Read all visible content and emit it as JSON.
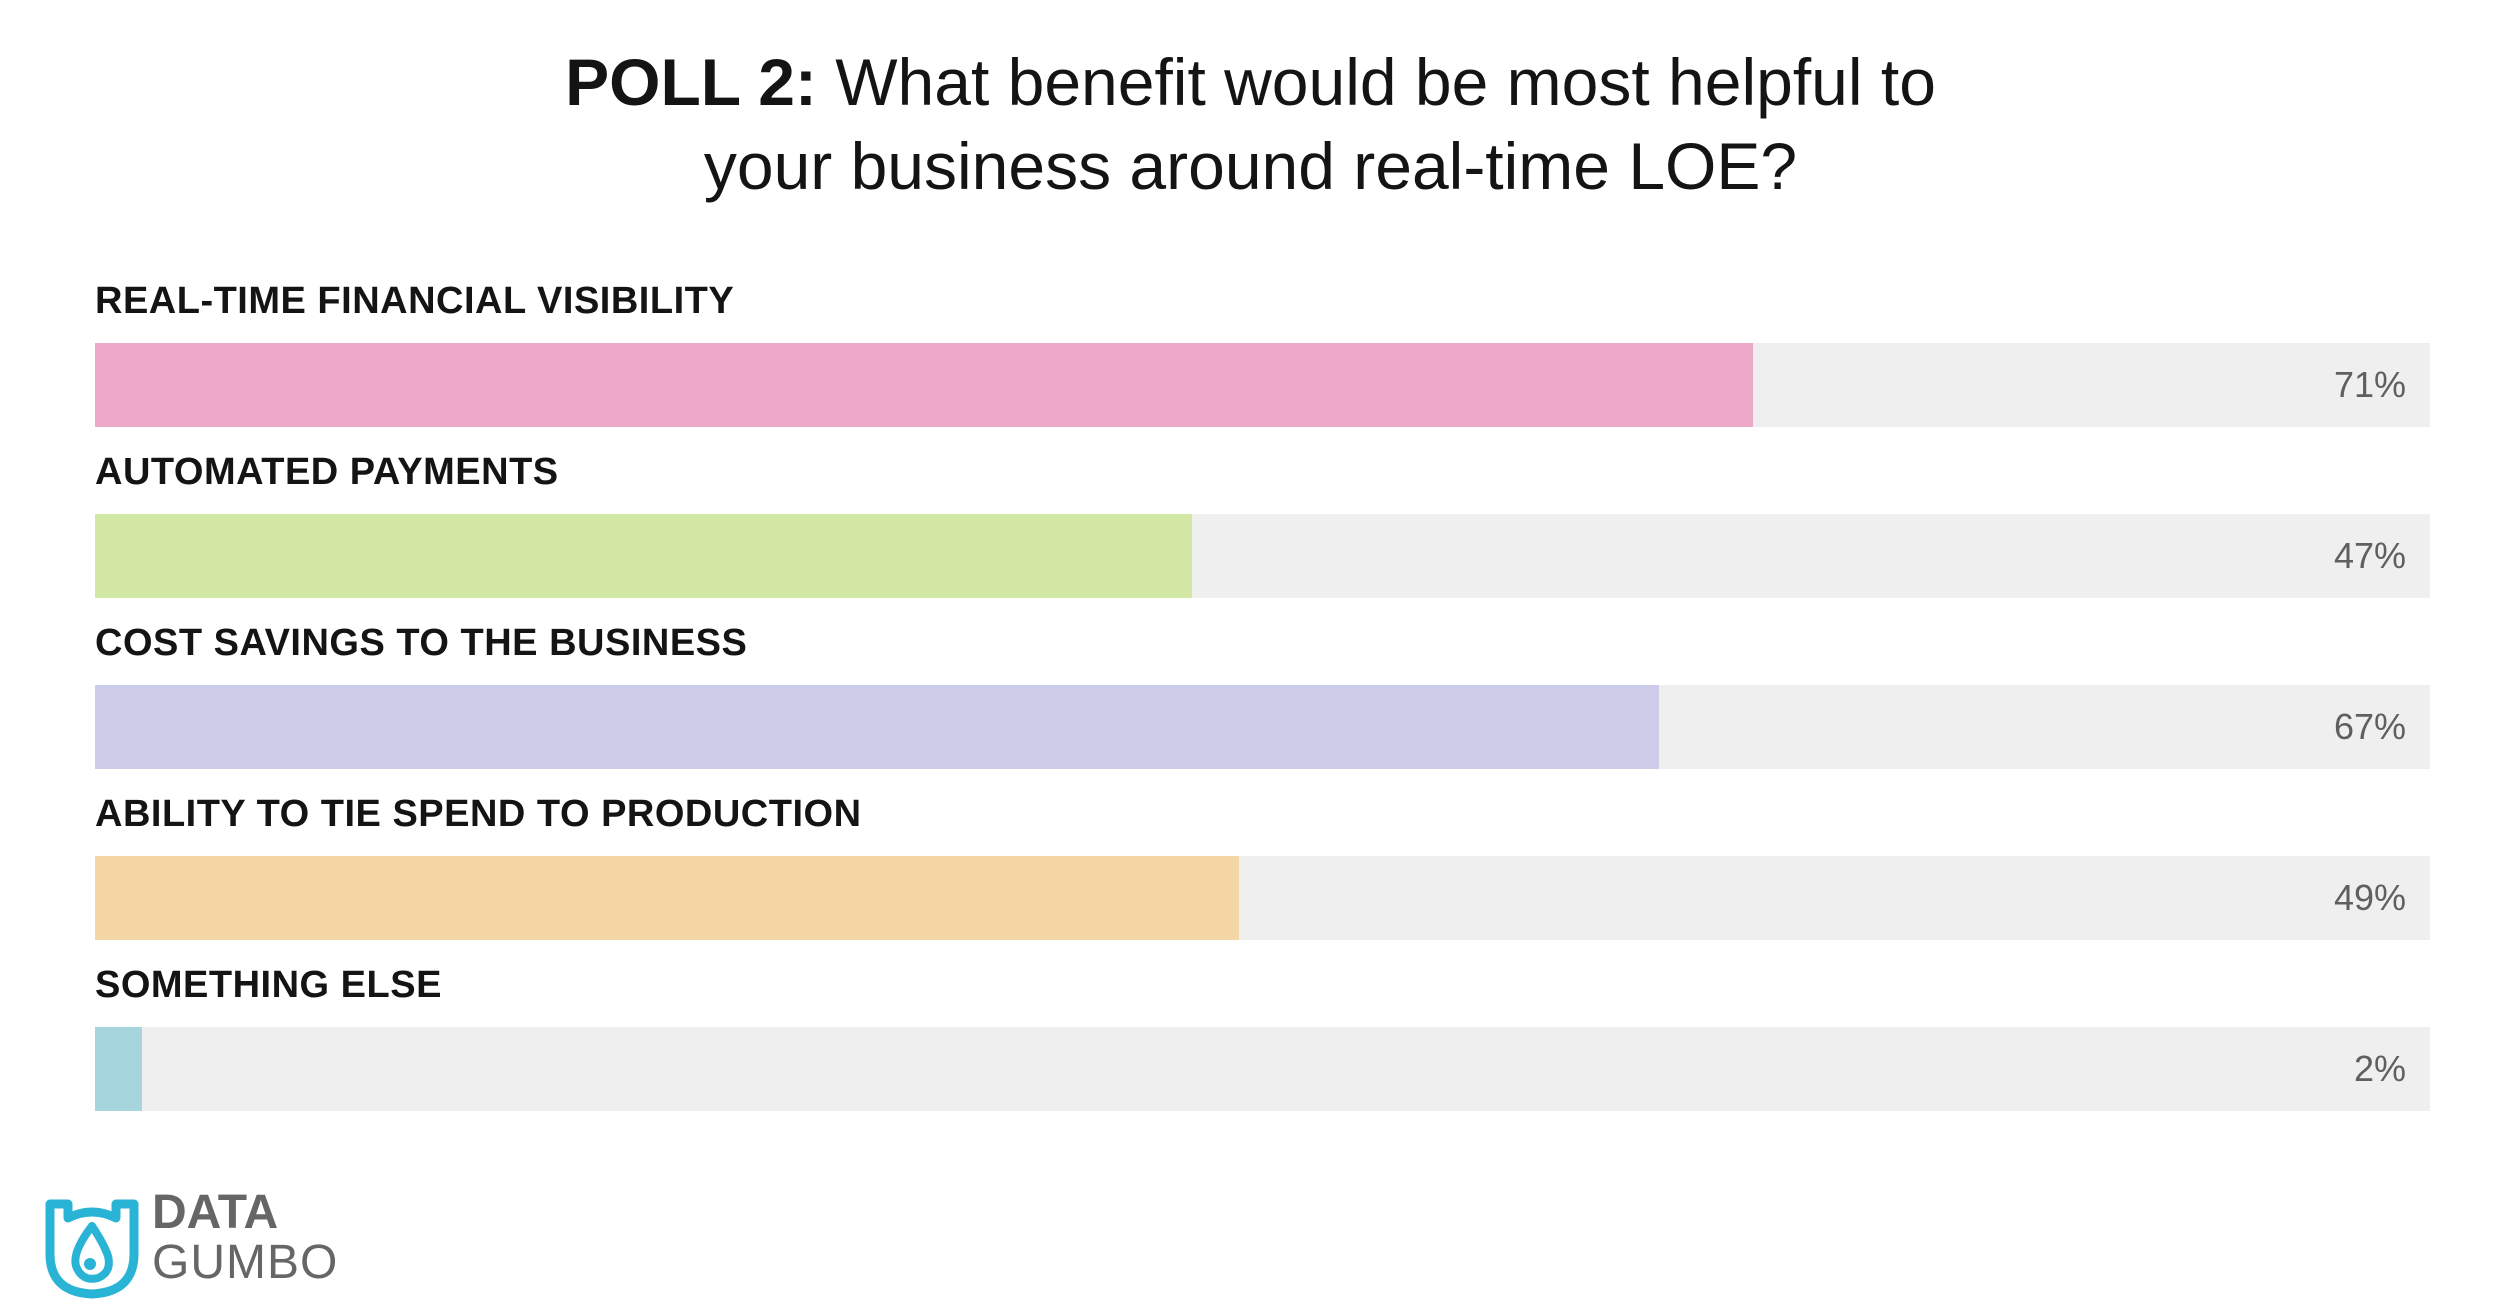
{
  "title": {
    "bold": "POLL 2:",
    "rest_line1": "What benefit would be most helpful to",
    "line2": "your business around real-time LOE?"
  },
  "chart_data": {
    "type": "bar",
    "orientation": "horizontal",
    "title": "POLL 2: What benefit would be most helpful to your business around real-time LOE?",
    "categories": [
      "REAL-TIME FINANCIAL VISIBILITY",
      "AUTOMATED PAYMENTS",
      "COST SAVINGS TO THE BUSINESS",
      "ABILITY TO TIE SPEND TO PRODUCTION",
      "SOMETHING ELSE"
    ],
    "values": [
      71,
      47,
      67,
      49,
      2
    ],
    "value_labels": [
      "71%",
      "47%",
      "67%",
      "49%",
      "2%"
    ],
    "colors": [
      "#eda8c9",
      "#d4e8a6",
      "#cdcde9",
      "#f5d7a6",
      "#a7d5de"
    ],
    "track_color": "#efefef",
    "xlim": [
      0,
      100
    ]
  },
  "logo": {
    "line1": "DATA",
    "line2": "GUMBO",
    "color": "#29b4d6",
    "icon": "droplet-shield-icon"
  }
}
